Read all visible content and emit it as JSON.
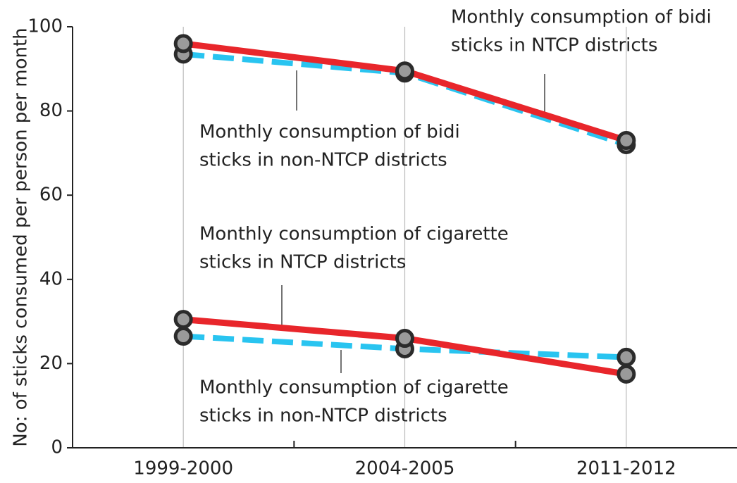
{
  "chart_data": {
    "type": "line",
    "ylabel": "No: of sticks consumed per person per month",
    "categories": [
      "1999-2000",
      "2004-2005",
      "2011-2012"
    ],
    "ylim": [
      0,
      100
    ],
    "yticks": [
      0,
      20,
      40,
      60,
      80,
      100
    ],
    "series": [
      {
        "name": [
          "Monthly consumption of bidi",
          "sticks in non-NTCP districts"
        ],
        "color": "#29c4f0",
        "dashed": true,
        "values": [
          93.5,
          89,
          72
        ]
      },
      {
        "name": [
          "Monthly consumption of bidi",
          "sticks in NTCP districts"
        ],
        "color": "#e8262b",
        "dashed": false,
        "values": [
          96,
          89.5,
          73
        ]
      },
      {
        "name": [
          "Monthly consumption of cigarette",
          "sticks in non-NTCP districts"
        ],
        "color": "#29c4f0",
        "dashed": true,
        "values": [
          26.5,
          23.5,
          21.5
        ]
      },
      {
        "name": [
          "Monthly consumption of cigarette",
          "sticks in NTCP districts"
        ],
        "color": "#e8262b",
        "dashed": false,
        "values": [
          30.5,
          26,
          17.5
        ]
      }
    ]
  }
}
